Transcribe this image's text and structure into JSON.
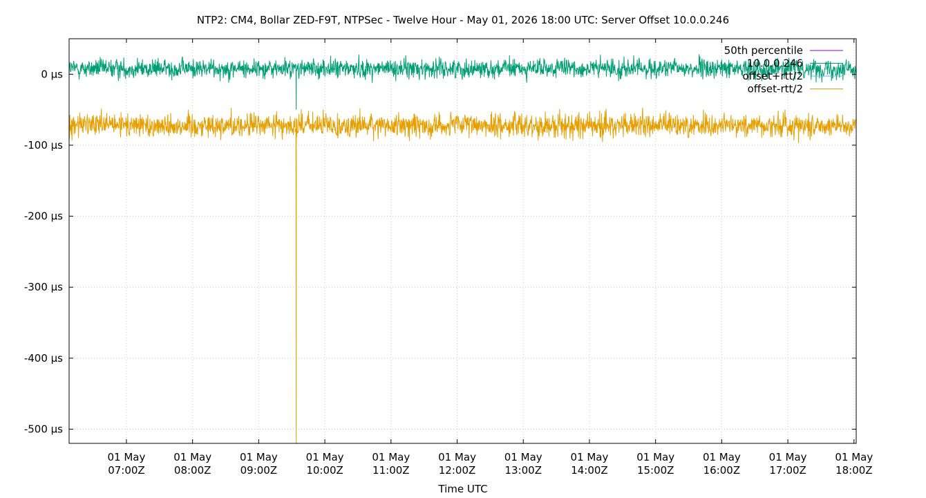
{
  "chart_data": {
    "type": "line",
    "title": "NTP2: CM4, Bollar ZED-F9T, NTPSec - Twelve Hour - May 01, 2026 18:00 UTC: Server Offset 10.0.0.246",
    "xlabel": "Time UTC",
    "ylabel": "",
    "x_range": [
      "01 May 06:08Z",
      "01 May 18:02Z"
    ],
    "x_ticks": [
      {
        "date": "01 May",
        "time": "07:00Z"
      },
      {
        "date": "01 May",
        "time": "08:00Z"
      },
      {
        "date": "01 May",
        "time": "09:00Z"
      },
      {
        "date": "01 May",
        "time": "10:00Z"
      },
      {
        "date": "01 May",
        "time": "11:00Z"
      },
      {
        "date": "01 May",
        "time": "12:00Z"
      },
      {
        "date": "01 May",
        "time": "13:00Z"
      },
      {
        "date": "01 May",
        "time": "14:00Z"
      },
      {
        "date": "01 May",
        "time": "15:00Z"
      },
      {
        "date": "01 May",
        "time": "16:00Z"
      },
      {
        "date": "01 May",
        "time": "17:00Z"
      },
      {
        "date": "01 May",
        "time": "18:00Z"
      }
    ],
    "ylim": [
      -520,
      50
    ],
    "y_ticks": [
      {
        "value": 0,
        "label": "0 µs"
      },
      {
        "value": -100,
        "label": "-100 µs"
      },
      {
        "value": -200,
        "label": "-200 µs"
      },
      {
        "value": -300,
        "label": "-300 µs"
      },
      {
        "value": -400,
        "label": "-400 µs"
      },
      {
        "value": -500,
        "label": "-500 µs"
      }
    ],
    "grid": true,
    "legend_position": "top-right",
    "series": [
      {
        "name": "50th percentile",
        "color": "#9400d3",
        "values": []
      },
      {
        "name": "10.0.0.246",
        "color": "#009e73",
        "center": 8,
        "noise_range": [
          -12,
          45
        ],
        "events": [
          {
            "time": "09:34Z",
            "value": -50
          }
        ]
      },
      {
        "name": "offset+rtt/2",
        "color": "#56b4e9",
        "values": []
      },
      {
        "name": "offset-rtt/2",
        "color": "#e69f00",
        "center": -72,
        "noise_range": [
          -115,
          -43
        ],
        "events": [
          {
            "time": "09:34Z",
            "value": -520
          }
        ]
      }
    ]
  }
}
